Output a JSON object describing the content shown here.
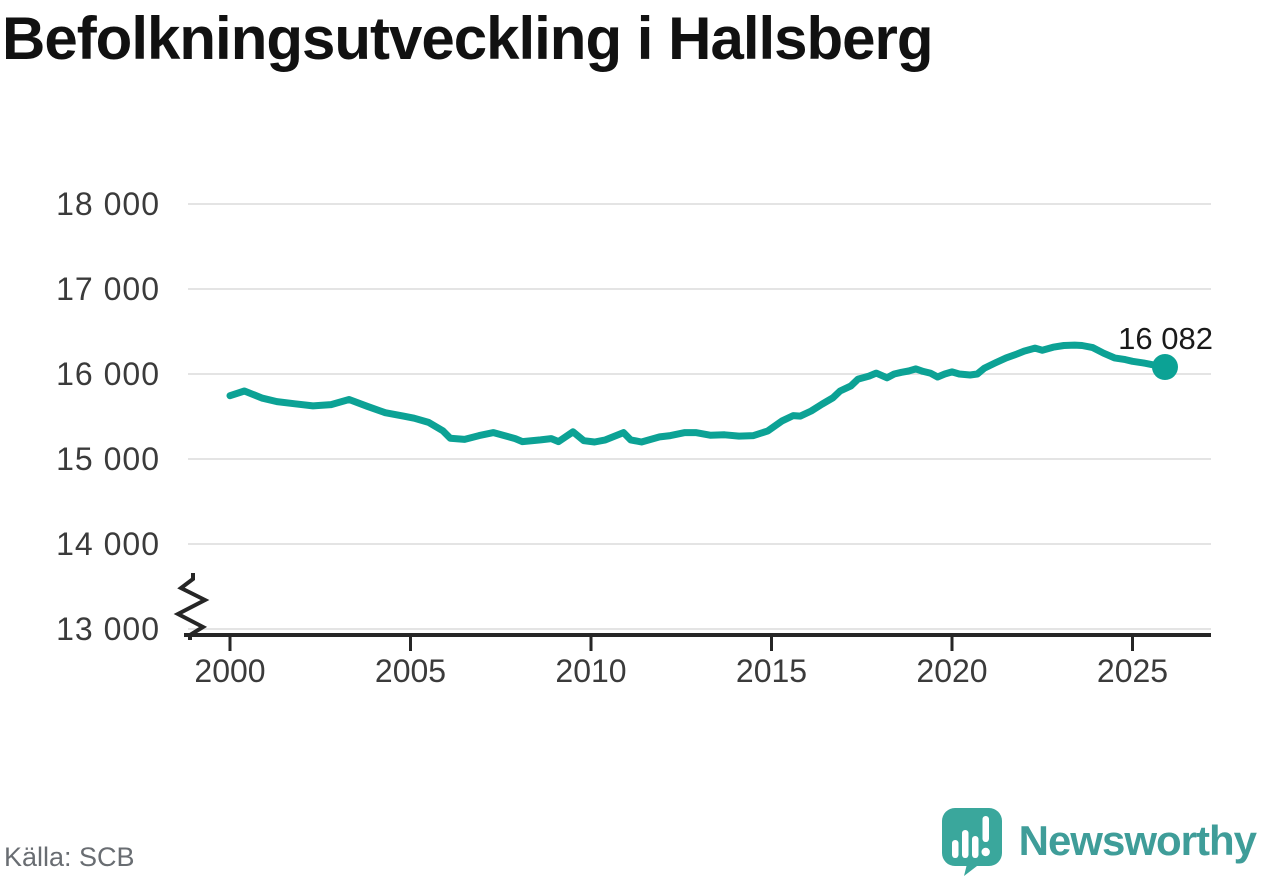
{
  "title": "Befolkningsutveckling i Hallsberg",
  "source_note": "Källa: SCB",
  "branding": {
    "name": "Newsworthy",
    "icon": "newsworthy-speech-bubble-bar-chart-icon",
    "text_color": "#3f9d99",
    "bubble_color": "#3aa79c"
  },
  "chart_data": {
    "type": "line",
    "title": "Befolkningsutveckling i Hallsberg",
    "xlabel": "",
    "ylabel": "",
    "grid": "horizontal",
    "legend": "none",
    "axis_break_at_bottom": true,
    "line_color": "#0ca295",
    "grid_color": "#e4e4e4",
    "axis_color": "#262626",
    "tick_label_color": "#3b3b3b",
    "annotation_color": "#1a1a1a",
    "x_ticks": [
      2000,
      2005,
      2010,
      2015,
      2020,
      2025
    ],
    "y_ticks": [
      13000,
      14000,
      15000,
      16000,
      17000,
      18000
    ],
    "y_tick_labels": [
      "13 000",
      "14 000",
      "15 000",
      "16 000",
      "17 000",
      "18 000"
    ],
    "ylim": [
      13000,
      18000
    ],
    "xlim": [
      2000,
      2026
    ],
    "end_point": {
      "label": "16 082",
      "value": 16082,
      "year": 2025.9
    },
    "points": [
      [
        2000.0,
        15745
      ],
      [
        2000.4,
        15800
      ],
      [
        2000.9,
        15715
      ],
      [
        2001.3,
        15675
      ],
      [
        2001.8,
        15650
      ],
      [
        2002.3,
        15625
      ],
      [
        2002.8,
        15640
      ],
      [
        2003.3,
        15700
      ],
      [
        2003.8,
        15620
      ],
      [
        2004.3,
        15545
      ],
      [
        2004.8,
        15505
      ],
      [
        2005.1,
        15480
      ],
      [
        2005.5,
        15430
      ],
      [
        2005.9,
        15330
      ],
      [
        2006.1,
        15245
      ],
      [
        2006.5,
        15230
      ],
      [
        2006.9,
        15275
      ],
      [
        2007.3,
        15310
      ],
      [
        2007.9,
        15240
      ],
      [
        2008.1,
        15205
      ],
      [
        2008.6,
        15225
      ],
      [
        2008.9,
        15240
      ],
      [
        2009.1,
        15205
      ],
      [
        2009.5,
        15320
      ],
      [
        2009.8,
        15215
      ],
      [
        2010.1,
        15200
      ],
      [
        2010.4,
        15225
      ],
      [
        2010.9,
        15310
      ],
      [
        2011.1,
        15225
      ],
      [
        2011.4,
        15200
      ],
      [
        2011.9,
        15260
      ],
      [
        2012.2,
        15275
      ],
      [
        2012.6,
        15310
      ],
      [
        2012.9,
        15310
      ],
      [
        2013.3,
        15280
      ],
      [
        2013.7,
        15285
      ],
      [
        2014.1,
        15270
      ],
      [
        2014.5,
        15275
      ],
      [
        2014.9,
        15330
      ],
      [
        2015.3,
        15450
      ],
      [
        2015.6,
        15510
      ],
      [
        2015.8,
        15505
      ],
      [
        2016.1,
        15565
      ],
      [
        2016.4,
        15645
      ],
      [
        2016.7,
        15720
      ],
      [
        2016.9,
        15800
      ],
      [
        2017.2,
        15860
      ],
      [
        2017.4,
        15940
      ],
      [
        2017.7,
        15975
      ],
      [
        2017.9,
        16010
      ],
      [
        2018.2,
        15955
      ],
      [
        2018.4,
        16000
      ],
      [
        2018.6,
        16020
      ],
      [
        2018.8,
        16035
      ],
      [
        2019.0,
        16060
      ],
      [
        2019.2,
        16030
      ],
      [
        2019.4,
        16010
      ],
      [
        2019.6,
        15965
      ],
      [
        2019.8,
        16000
      ],
      [
        2020.0,
        16025
      ],
      [
        2020.2,
        16000
      ],
      [
        2020.5,
        15988
      ],
      [
        2020.7,
        16000
      ],
      [
        2020.9,
        16070
      ],
      [
        2021.2,
        16130
      ],
      [
        2021.5,
        16190
      ],
      [
        2021.8,
        16235
      ],
      [
        2022.0,
        16270
      ],
      [
        2022.3,
        16305
      ],
      [
        2022.5,
        16280
      ],
      [
        2022.8,
        16315
      ],
      [
        2023.1,
        16335
      ],
      [
        2023.4,
        16340
      ],
      [
        2023.6,
        16335
      ],
      [
        2023.9,
        16310
      ],
      [
        2024.2,
        16245
      ],
      [
        2024.5,
        16190
      ],
      [
        2024.8,
        16170
      ],
      [
        2025.0,
        16150
      ],
      [
        2025.3,
        16130
      ],
      [
        2025.6,
        16105
      ],
      [
        2025.9,
        16082
      ]
    ]
  }
}
